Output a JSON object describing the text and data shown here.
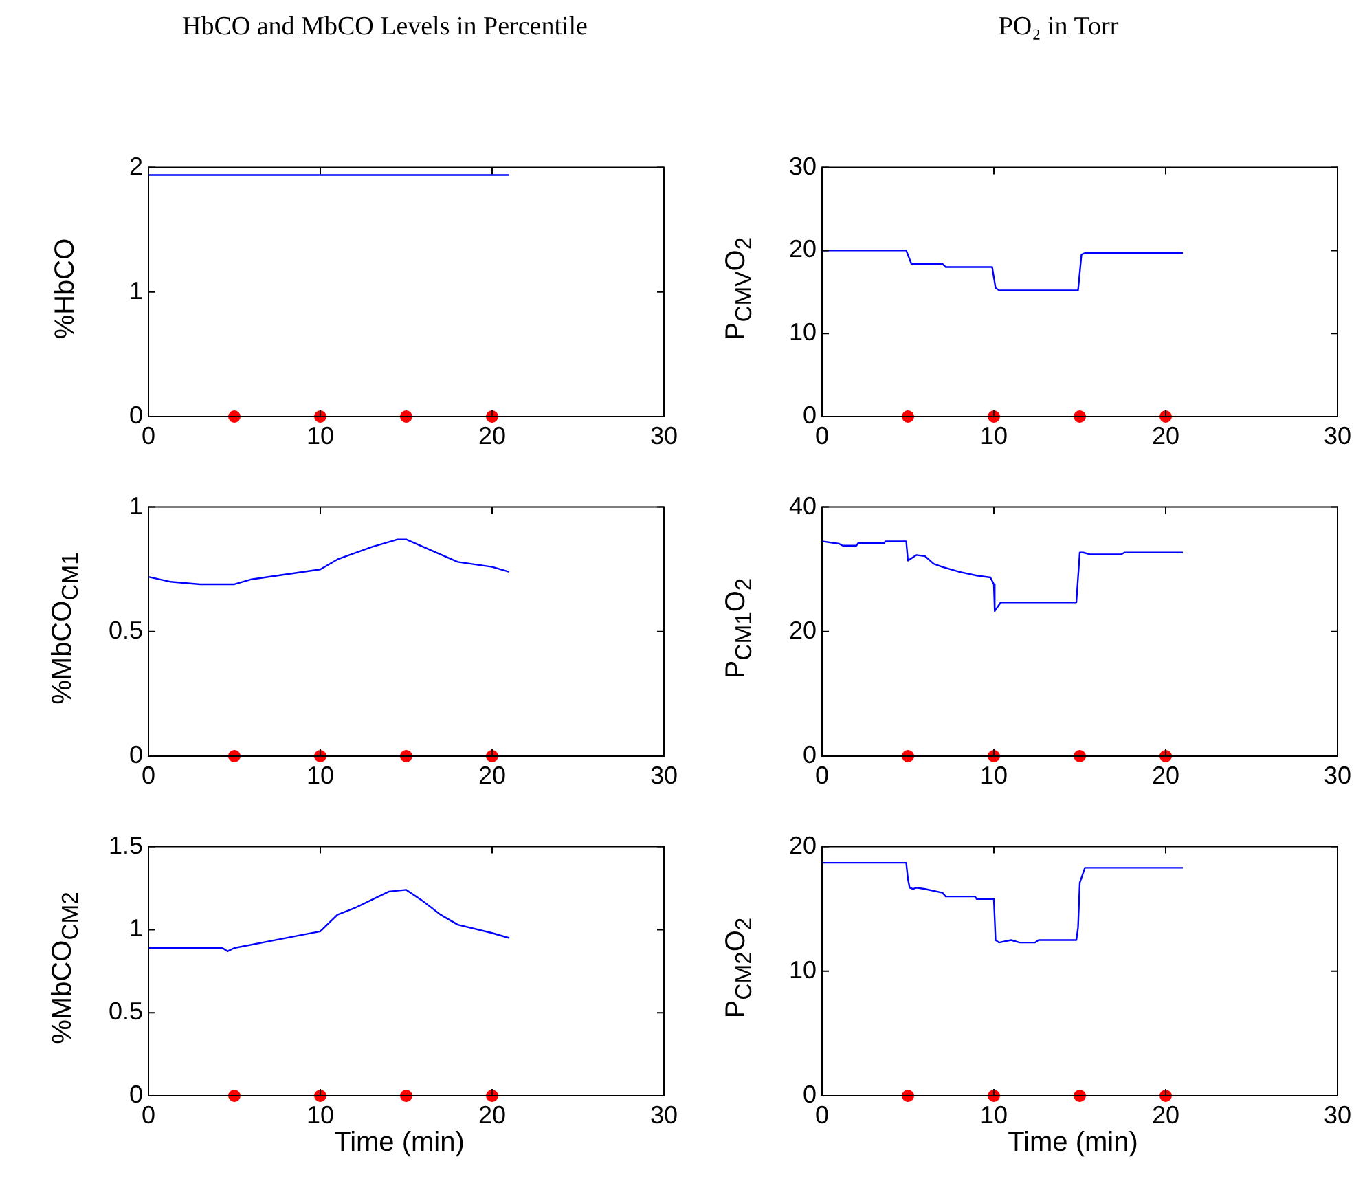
{
  "chart_data": [
    {
      "type": "line",
      "title": "HbCO and MbCO Levels in Percentile",
      "ylabel": "%HbCO",
      "xlim": [
        0,
        30
      ],
      "xticks": [
        0,
        10,
        20,
        30
      ],
      "ylim": [
        0,
        2
      ],
      "yticks": [
        0,
        1,
        2
      ],
      "grid": false,
      "series": [
        {
          "color": "#0000ff",
          "x": [
            0,
            21
          ],
          "values": [
            1.94,
            1.94
          ]
        },
        {
          "type": "scatter",
          "marker": "circle",
          "color": "#ff0000",
          "x": [
            5,
            10,
            15,
            20
          ],
          "values": [
            0,
            0,
            0,
            0
          ]
        }
      ]
    },
    {
      "type": "line",
      "title": "PO₂ in Torr",
      "ylabel": "P$_{CMV}$O$_{2}$",
      "xlim": [
        0,
        30
      ],
      "xticks": [
        0,
        10,
        20,
        30
      ],
      "ylim": [
        0,
        30
      ],
      "yticks": [
        0,
        10,
        20,
        30
      ],
      "grid": false,
      "series": [
        {
          "color": "#0000ff",
          "x": [
            0,
            4.9,
            5.2,
            7,
            7.2,
            9.9,
            10.1,
            10.3,
            14.9,
            15.1,
            15.3,
            21
          ],
          "values": [
            20,
            20,
            18.4,
            18.4,
            18,
            18,
            15.5,
            15.2,
            15.2,
            19.5,
            19.7,
            19.7
          ]
        },
        {
          "type": "scatter",
          "marker": "circle",
          "color": "#ff0000",
          "x": [
            5,
            10,
            15,
            20
          ],
          "values": [
            0,
            0,
            0,
            0
          ]
        }
      ]
    },
    {
      "type": "line",
      "ylabel": "%MbCO$_{CM1}$",
      "xlim": [
        0,
        30
      ],
      "xticks": [
        0,
        10,
        20,
        30
      ],
      "ylim": [
        0,
        1
      ],
      "yticks": [
        0,
        0.5,
        1
      ],
      "grid": false,
      "series": [
        {
          "color": "#0000ff",
          "x": [
            0,
            1.3,
            3,
            5,
            6,
            8,
            10,
            11,
            13,
            14.5,
            15,
            16,
            18,
            20,
            21
          ],
          "values": [
            0.72,
            0.7,
            0.69,
            0.69,
            0.71,
            0.73,
            0.75,
            0.79,
            0.84,
            0.87,
            0.87,
            0.84,
            0.78,
            0.76,
            0.74
          ]
        },
        {
          "type": "scatter",
          "marker": "circle",
          "color": "#ff0000",
          "x": [
            5,
            10,
            15,
            20
          ],
          "values": [
            0,
            0,
            0,
            0
          ]
        }
      ]
    },
    {
      "type": "line",
      "ylabel": "P$_{CM1}$O$_{2}$",
      "xlim": [
        0,
        30
      ],
      "xticks": [
        0,
        10,
        20,
        30
      ],
      "ylim": [
        0,
        40
      ],
      "yticks": [
        0,
        20,
        40
      ],
      "grid": false,
      "series": [
        {
          "color": "#0000ff",
          "x": [
            0,
            1,
            1.2,
            2,
            2.1,
            3.6,
            3.7,
            4.9,
            5,
            5.5,
            6,
            6.5,
            7,
            8,
            9,
            9.8,
            10,
            10.05,
            10.4,
            14.8,
            15,
            15.2,
            15.6,
            17.4,
            17.6,
            21
          ],
          "values": [
            34.5,
            34.1,
            33.8,
            33.8,
            34.2,
            34.2,
            34.5,
            34.5,
            31.4,
            32.3,
            32.1,
            30.9,
            30.4,
            29.6,
            29,
            28.7,
            27.6,
            23.3,
            24.7,
            24.7,
            32.7,
            32.7,
            32.4,
            32.4,
            32.7,
            32.7
          ]
        },
        {
          "type": "scatter",
          "marker": "circle",
          "color": "#ff0000",
          "x": [
            5,
            10,
            15,
            20
          ],
          "values": [
            0,
            0,
            0,
            0
          ]
        }
      ]
    },
    {
      "type": "line",
      "ylabel": "%MbCO$_{CM2}$",
      "xlabel": "Time (min)",
      "xlim": [
        0,
        30
      ],
      "xticks": [
        0,
        10,
        20,
        30
      ],
      "ylim": [
        0,
        1.5
      ],
      "yticks": [
        0,
        0.5,
        1,
        1.5
      ],
      "grid": false,
      "series": [
        {
          "color": "#0000ff",
          "x": [
            0,
            4.3,
            4.6,
            5,
            7,
            9,
            10,
            11,
            12,
            13,
            14,
            15,
            16,
            17,
            18,
            20,
            21
          ],
          "values": [
            0.89,
            0.89,
            0.87,
            0.89,
            0.93,
            0.97,
            0.99,
            1.09,
            1.13,
            1.18,
            1.23,
            1.24,
            1.17,
            1.09,
            1.03,
            0.98,
            0.95
          ]
        },
        {
          "type": "scatter",
          "marker": "circle",
          "color": "#ff0000",
          "x": [
            5,
            10,
            15,
            20
          ],
          "values": [
            0,
            0,
            0,
            0
          ]
        }
      ]
    },
    {
      "type": "line",
      "ylabel": "P$_{CM2}$O$_{2}$",
      "xlabel": "Time (min)",
      "xlim": [
        0,
        30
      ],
      "xticks": [
        0,
        10,
        20,
        30
      ],
      "ylim": [
        0,
        20
      ],
      "yticks": [
        0,
        10,
        20
      ],
      "grid": false,
      "series": [
        {
          "color": "#0000ff",
          "x": [
            0,
            4.9,
            5,
            5.1,
            5.3,
            5.5,
            6,
            7,
            7.2,
            8.9,
            9,
            10,
            10.1,
            10.3,
            11,
            11.5,
            12.4,
            12.6,
            14.8,
            14.9,
            15,
            15.3,
            21
          ],
          "values": [
            18.7,
            18.7,
            17.4,
            16.7,
            16.6,
            16.7,
            16.6,
            16.3,
            16,
            16,
            15.8,
            15.8,
            12.5,
            12.3,
            12.5,
            12.3,
            12.3,
            12.5,
            12.5,
            13.5,
            17.1,
            18.3,
            18.3
          ]
        },
        {
          "type": "scatter",
          "marker": "circle",
          "color": "#ff0000",
          "x": [
            5,
            10,
            15,
            20
          ],
          "values": [
            0,
            0,
            0,
            0
          ]
        }
      ]
    }
  ]
}
